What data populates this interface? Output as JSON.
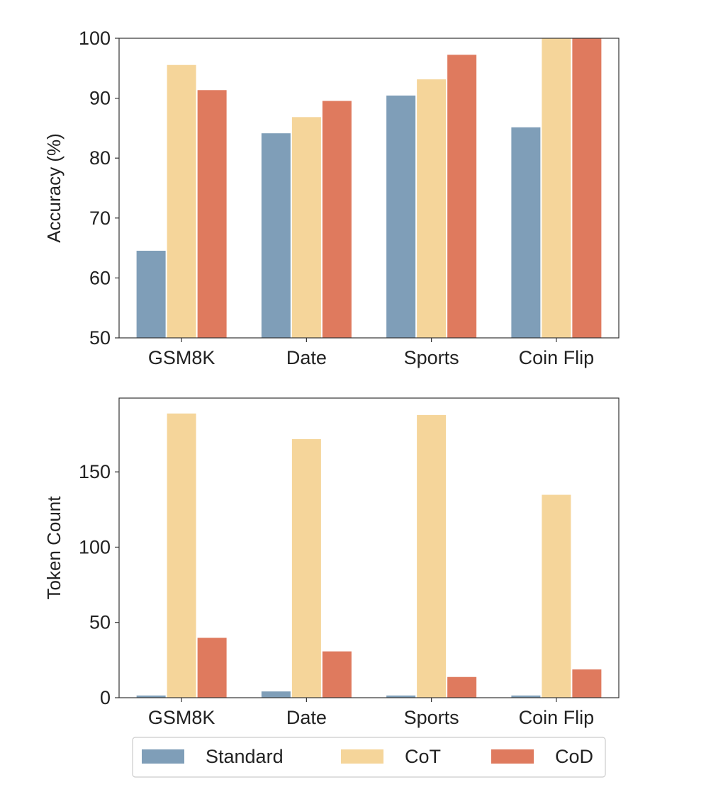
{
  "chart_data": [
    {
      "type": "bar",
      "categories": [
        "GSM8K",
        "Date",
        "Sports",
        "Coin Flip"
      ],
      "series": [
        {
          "name": "Standard",
          "values": [
            64.6,
            84.2,
            90.5,
            85.2
          ]
        },
        {
          "name": "CoT",
          "values": [
            95.6,
            86.9,
            93.2,
            100
          ]
        },
        {
          "name": "CoD",
          "values": [
            91.4,
            89.6,
            97.3,
            100
          ]
        }
      ],
      "ylabel": "Accuracy (%)",
      "ylim": [
        50,
        100
      ],
      "yticks": [
        50,
        60,
        70,
        80,
        90,
        100
      ],
      "grid": false
    },
    {
      "type": "bar",
      "categories": [
        "GSM8K",
        "Date",
        "Sports",
        "Coin Flip"
      ],
      "series": [
        {
          "name": "Standard",
          "values": [
            1.7,
            4.4,
            1.7,
            1.7
          ]
        },
        {
          "name": "CoT",
          "values": [
            189,
            172,
            188,
            135
          ]
        },
        {
          "name": "CoD",
          "values": [
            40,
            31,
            14,
            19
          ]
        }
      ],
      "ylabel": "Token Count",
      "ylim": [
        0,
        199
      ],
      "yticks": [
        0,
        50,
        100,
        150
      ],
      "grid": false
    }
  ],
  "legend": {
    "placement": "bottom-center",
    "entries": [
      "Standard",
      "CoT",
      "CoD"
    ]
  },
  "colors": {
    "Standard": "#7f9eb8",
    "CoT": "#f5d59a",
    "CoD": "#df7a5e"
  }
}
